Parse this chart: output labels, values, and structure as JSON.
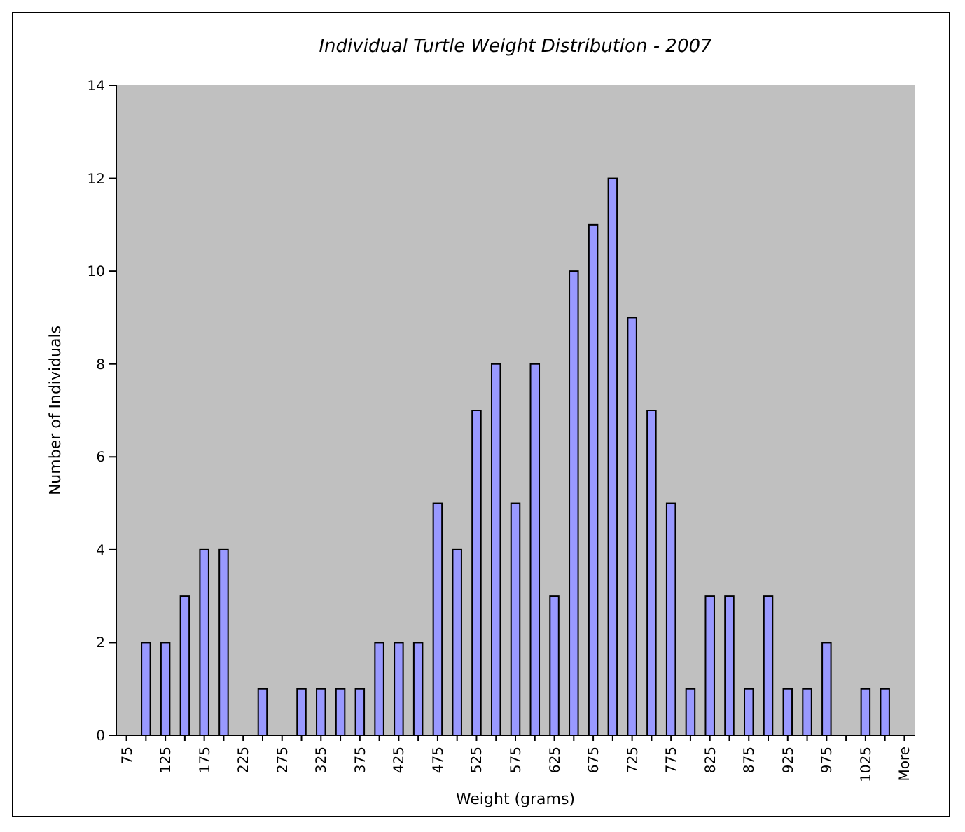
{
  "chart_data": {
    "type": "bar",
    "title": "Individual Turtle Weight Distribution - 2007",
    "xlabel": "Weight (grams)",
    "ylabel": "Number of Individuals",
    "categories": [
      "75",
      null,
      "125",
      null,
      "175",
      null,
      "225",
      null,
      "275",
      null,
      "325",
      null,
      "375",
      null,
      "425",
      null,
      "475",
      null,
      "525",
      null,
      "575",
      null,
      "625",
      null,
      "675",
      null,
      "725",
      null,
      "775",
      null,
      "825",
      null,
      "875",
      null,
      "925",
      null,
      "975",
      null,
      "1025",
      null,
      "More"
    ],
    "values": [
      0,
      2,
      2,
      3,
      4,
      4,
      0,
      1,
      0,
      1,
      1,
      1,
      1,
      2,
      2,
      2,
      5,
      4,
      7,
      8,
      5,
      8,
      3,
      10,
      11,
      12,
      9,
      7,
      5,
      1,
      3,
      3,
      1,
      3,
      1,
      1,
      2,
      0,
      1,
      1,
      0
    ],
    "color": "#9999ff",
    "ylim": [
      0,
      14
    ],
    "yticks": [
      0,
      2,
      4,
      6,
      8,
      10,
      12,
      14
    ],
    "grid": false
  }
}
